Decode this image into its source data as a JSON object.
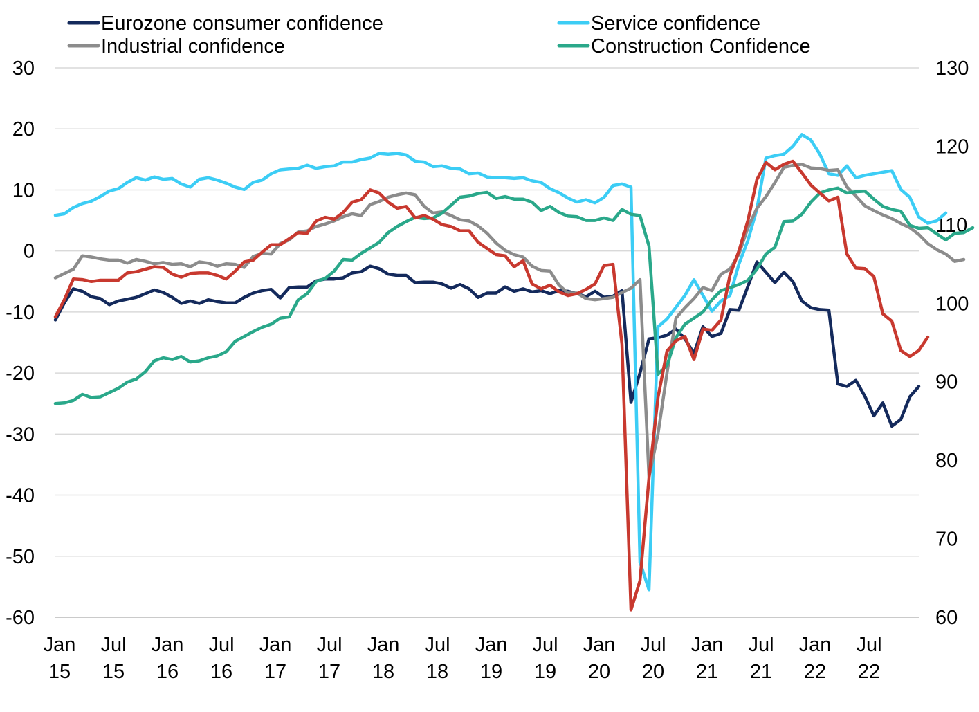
{
  "chart_data": {
    "type": "line",
    "title": "",
    "xlabel": "",
    "ylabel": "",
    "x_start": "2015-01",
    "x_end": "2022-12",
    "y_left": {
      "range": [
        -60,
        30
      ],
      "ticks": [
        "30",
        "20",
        "10",
        "0",
        "-10",
        "-20",
        "-30",
        "-40",
        "-50",
        "-60"
      ]
    },
    "y_right": {
      "range": [
        60,
        130
      ],
      "ticks": [
        "130",
        "120",
        "110",
        "100",
        "90",
        "80",
        "70",
        "60"
      ]
    },
    "x_ticks": [
      {
        "date": "2015-01",
        "line1": "Jan",
        "line2": "15"
      },
      {
        "date": "2015-07",
        "line1": "Jul",
        "line2": "15"
      },
      {
        "date": "2016-01",
        "line1": "Jan",
        "line2": "16"
      },
      {
        "date": "2016-07",
        "line1": "Jul",
        "line2": "16"
      },
      {
        "date": "2017-01",
        "line1": "Jan",
        "line2": "17"
      },
      {
        "date": "2017-07",
        "line1": "Jul",
        "line2": "17"
      },
      {
        "date": "2018-01",
        "line1": "Jan",
        "line2": "18"
      },
      {
        "date": "2018-07",
        "line1": "Jul",
        "line2": "18"
      },
      {
        "date": "2019-01",
        "line1": "Jan",
        "line2": "19"
      },
      {
        "date": "2019-07",
        "line1": "Jul",
        "line2": "19"
      },
      {
        "date": "2020-01",
        "line1": "Jan",
        "line2": "20"
      },
      {
        "date": "2020-07",
        "line1": "Jul",
        "line2": "20"
      },
      {
        "date": "2021-01",
        "line1": "Jan",
        "line2": "21"
      },
      {
        "date": "2021-07",
        "line1": "Jul",
        "line2": "21"
      },
      {
        "date": "2022-01",
        "line1": "Jan",
        "line2": "22"
      },
      {
        "date": "2022-07",
        "line1": "Jul",
        "line2": "22"
      }
    ],
    "grid": true,
    "legend_position": "top",
    "series": [
      {
        "name": "Eurozone consumer confidence",
        "color": "#142a5c",
        "axis": "left",
        "values": [
          -11.3,
          -8.5,
          -6.2,
          -6.6,
          -7.5,
          -7.8,
          -8.8,
          -8.2,
          -7.9,
          -7.6,
          -7.0,
          -6.4,
          -6.8,
          -7.6,
          -8.6,
          -8.2,
          -8.6,
          -8.0,
          -8.3,
          -8.5,
          -8.5,
          -7.6,
          -6.9,
          -6.5,
          -6.3,
          -7.7,
          -6.0,
          -5.9,
          -5.9,
          -4.9,
          -4.6,
          -4.6,
          -4.4,
          -3.6,
          -3.4,
          -2.5,
          -2.9,
          -3.8,
          -4.0,
          -4.0,
          -5.2,
          -5.1,
          -5.1,
          -5.4,
          -6.1,
          -5.5,
          -6.2,
          -7.6,
          -6.9,
          -6.9,
          -5.9,
          -6.6,
          -6.2,
          -6.7,
          -6.5,
          -7.0,
          -6.5,
          -6.6,
          -7.0,
          -7.5,
          -6.6,
          -7.6,
          -7.4,
          -6.5,
          -24.8,
          -20.0,
          -14.4,
          -14.2,
          -13.8,
          -12.8,
          -14.4,
          -16.8,
          -12.4,
          -14.0,
          -13.5,
          -9.6,
          -9.7,
          -5.8,
          -1.8,
          -3.5,
          -5.2,
          -3.5,
          -5.0,
          -8.2,
          -9.3,
          -9.6,
          -9.7,
          -21.8,
          -22.2,
          -21.2,
          -23.8,
          -27.0,
          -24.9,
          -28.7,
          -27.6,
          -23.9,
          -22.2
        ]
      },
      {
        "name": "Service confidence",
        "color": "#3ccdf5",
        "axis": "right",
        "values": [
          111.2,
          111.4,
          112.2,
          112.7,
          113.0,
          113.6,
          114.3,
          114.6,
          115.4,
          116.0,
          115.7,
          116.1,
          115.8,
          115.9,
          115.2,
          114.8,
          115.8,
          116.0,
          115.7,
          115.3,
          114.8,
          114.5,
          115.4,
          115.7,
          116.5,
          117.0,
          117.1,
          117.2,
          117.6,
          117.2,
          117.4,
          117.5,
          118.0,
          118.0,
          118.3,
          118.5,
          119.1,
          119.0,
          119.1,
          118.9,
          118.1,
          118.0,
          117.4,
          117.5,
          117.2,
          117.1,
          116.5,
          116.6,
          116.1,
          116.0,
          116.0,
          115.9,
          116.0,
          115.6,
          115.4,
          114.6,
          114.1,
          113.4,
          112.9,
          113.2,
          112.8,
          113.5,
          115.0,
          115.2,
          114.8,
          67.0,
          63.5,
          97.0,
          98.0,
          99.5,
          101.0,
          103.0,
          101.0,
          99.0,
          100.3,
          101.0,
          105.0,
          108.0,
          112.0,
          118.5,
          118.8,
          119.0,
          120.0,
          121.5,
          120.8,
          119.0,
          116.5,
          116.3,
          117.5,
          116.0,
          116.3,
          116.5,
          116.7,
          116.9,
          114.5,
          113.5,
          111.0,
          110.2,
          110.5,
          111.5
        ]
      },
      {
        "name": "Industrial confidence",
        "color": "#8c8c8c",
        "axis": "left",
        "values": [
          -4.4,
          -3.7,
          -3.0,
          -0.8,
          -1.0,
          -1.3,
          -1.5,
          -1.5,
          -2.0,
          -1.4,
          -1.7,
          -2.1,
          -1.9,
          -2.2,
          -2.1,
          -2.6,
          -1.8,
          -2.0,
          -2.5,
          -2.1,
          -2.2,
          -2.7,
          -0.9,
          -0.4,
          -0.5,
          1.2,
          1.8,
          3.1,
          3.3,
          4.0,
          4.4,
          4.9,
          5.6,
          6.1,
          5.8,
          7.6,
          8.1,
          8.8,
          9.2,
          9.5,
          9.2,
          7.3,
          6.2,
          6.4,
          5.8,
          5.1,
          4.9,
          4.1,
          2.9,
          1.3,
          0.1,
          -0.6,
          -1.0,
          -2.5,
          -3.2,
          -3.3,
          -5.6,
          -6.9,
          -6.9,
          -7.8,
          -8.0,
          -7.8,
          -7.6,
          -6.8,
          -6.1,
          -4.7,
          -37.0,
          -30.0,
          -20.0,
          -11.0,
          -9.3,
          -7.8,
          -6.0,
          -6.5,
          -3.8,
          -3.0,
          -0.5,
          3.8,
          7.0,
          8.9,
          11.2,
          13.7,
          14.0,
          14.2,
          13.6,
          13.5,
          13.2,
          13.3,
          10.5,
          9.0,
          7.4,
          6.6,
          5.9,
          5.3,
          4.5,
          3.8,
          2.7,
          1.2,
          0.2,
          -0.5,
          -1.7,
          -1.4
        ]
      },
      {
        "name": "Construction Confidence",
        "color": "#2aa88a",
        "axis": "left",
        "values": [
          -25.0,
          -24.9,
          -24.5,
          -23.5,
          -24.0,
          -23.9,
          -23.2,
          -22.5,
          -21.5,
          -21.0,
          -19.8,
          -18.0,
          -17.5,
          -17.8,
          -17.3,
          -18.2,
          -18.0,
          -17.5,
          -17.2,
          -16.5,
          -14.8,
          -14.0,
          -13.2,
          -12.5,
          -12.0,
          -11.0,
          -10.8,
          -8.0,
          -7.0,
          -5.0,
          -4.5,
          -3.3,
          -1.4,
          -1.5,
          -0.4,
          0.5,
          1.4,
          3.0,
          4.0,
          4.8,
          5.5,
          5.3,
          5.4,
          6.2,
          7.5,
          8.8,
          9.0,
          9.4,
          9.6,
          8.6,
          8.9,
          8.5,
          8.5,
          8.0,
          6.6,
          7.3,
          6.3,
          5.7,
          5.6,
          5.0,
          5.0,
          5.4,
          5.0,
          6.8,
          6.0,
          5.8,
          0.8,
          -20.2,
          -18.8,
          -14.2,
          -12.0,
          -11.0,
          -10.0,
          -8.0,
          -6.5,
          -6.0,
          -5.5,
          -4.8,
          -3.0,
          -0.5,
          0.6,
          4.8,
          4.9,
          6.0,
          8.0,
          9.5,
          10.0,
          10.3,
          9.5,
          9.7,
          9.8,
          8.5,
          7.3,
          6.8,
          6.5,
          4.2,
          3.7,
          3.8,
          2.8,
          1.8,
          2.9,
          3.0,
          3.8
        ]
      },
      {
        "name": "",
        "color": "#c8392f",
        "axis": "left",
        "values": [
          -10.8,
          -8.0,
          -4.6,
          -4.7,
          -5.0,
          -4.8,
          -4.8,
          -4.8,
          -3.6,
          -3.4,
          -3.0,
          -2.6,
          -2.7,
          -3.8,
          -4.3,
          -3.7,
          -3.6,
          -3.6,
          -4.0,
          -4.6,
          -3.3,
          -1.8,
          -1.5,
          -0.2,
          1.0,
          1.0,
          2.0,
          3.0,
          2.9,
          4.9,
          5.5,
          5.2,
          6.3,
          8.0,
          8.4,
          10.0,
          9.5,
          8.0,
          7.0,
          7.3,
          5.4,
          5.8,
          5.2,
          4.3,
          4.0,
          3.3,
          3.3,
          1.4,
          0.4,
          -0.6,
          -0.8,
          -2.6,
          -1.6,
          -5.4,
          -6.2,
          -5.6,
          -6.7,
          -7.3,
          -7.0,
          -6.3,
          -5.4,
          -2.4,
          -2.2,
          -15.3,
          -58.8,
          -54.0,
          -37.2,
          -24.0,
          -16.4,
          -14.7,
          -14.0,
          -17.8,
          -12.8,
          -13.0,
          -11.3,
          -4.0,
          0.0,
          5.0,
          11.7,
          14.5,
          13.3,
          14.2,
          14.7,
          12.8,
          10.8,
          9.5,
          8.2,
          8.8,
          -0.5,
          -2.8,
          -2.9,
          -4.2,
          -10.3,
          -11.5,
          -16.3,
          -17.3,
          -16.3,
          -14.1
        ]
      }
    ]
  }
}
